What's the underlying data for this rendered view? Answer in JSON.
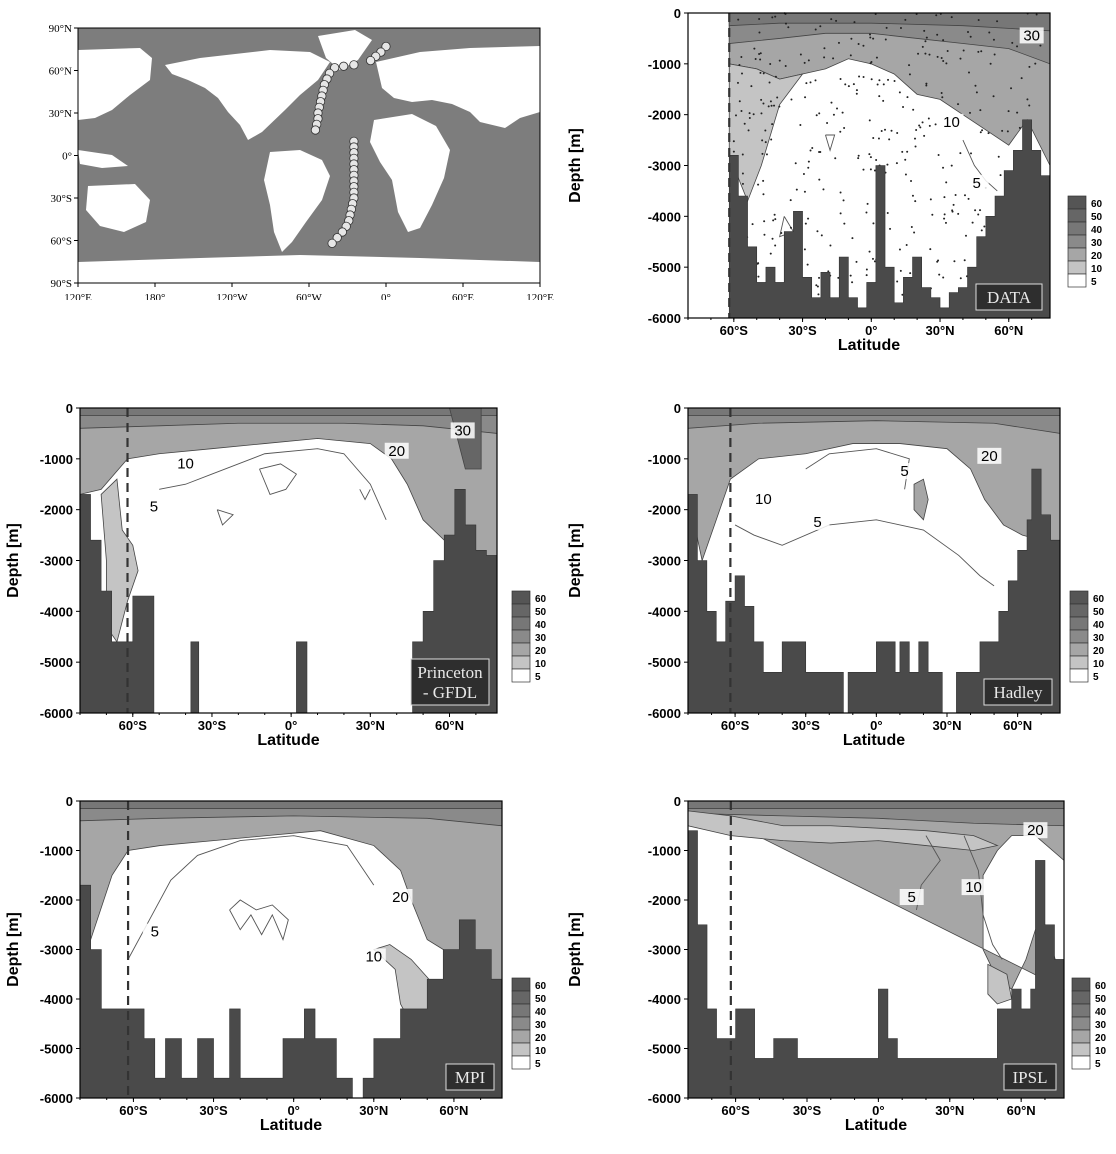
{
  "map": {
    "lat_ticks": [
      "90°N",
      "60°N",
      "30°N",
      "0°",
      "30°S",
      "60°S",
      "90°S"
    ],
    "lon_ticks": [
      "120°E",
      "180°",
      "120°W",
      "60°W",
      "0°",
      "60°E",
      "120°E"
    ],
    "track": [
      {
        "lon": 0,
        "lat": 77
      },
      {
        "lon": -4,
        "lat": 73
      },
      {
        "lon": -8,
        "lat": 70
      },
      {
        "lon": -12,
        "lat": 67
      },
      {
        "lon": -25,
        "lat": 64
      },
      {
        "lon": -33,
        "lat": 63
      },
      {
        "lon": -40,
        "lat": 62
      },
      {
        "lon": -44,
        "lat": 58
      },
      {
        "lon": -46,
        "lat": 54
      },
      {
        "lon": -48,
        "lat": 50
      },
      {
        "lon": -49,
        "lat": 46
      },
      {
        "lon": -50,
        "lat": 42
      },
      {
        "lon": -51,
        "lat": 38
      },
      {
        "lon": -52,
        "lat": 34
      },
      {
        "lon": -53,
        "lat": 30
      },
      {
        "lon": -53,
        "lat": 26
      },
      {
        "lon": -54,
        "lat": 22
      },
      {
        "lon": -55,
        "lat": 18
      },
      {
        "lon": -25,
        "lat": 10
      },
      {
        "lon": -25,
        "lat": 6
      },
      {
        "lon": -25,
        "lat": 2
      },
      {
        "lon": -25,
        "lat": -2
      },
      {
        "lon": -25,
        "lat": -6
      },
      {
        "lon": -25,
        "lat": -10
      },
      {
        "lon": -25,
        "lat": -14
      },
      {
        "lon": -25,
        "lat": -18
      },
      {
        "lon": -25,
        "lat": -22
      },
      {
        "lon": -25,
        "lat": -26
      },
      {
        "lon": -25,
        "lat": -30
      },
      {
        "lon": -26,
        "lat": -34
      },
      {
        "lon": -27,
        "lat": -38
      },
      {
        "lon": -28,
        "lat": -42
      },
      {
        "lon": -29,
        "lat": -46
      },
      {
        "lon": -31,
        "lat": -50
      },
      {
        "lon": -34,
        "lat": -54
      },
      {
        "lon": -38,
        "lat": -58
      },
      {
        "lon": -42,
        "lat": -62
      }
    ]
  },
  "legend": {
    "values": [
      "60",
      "50",
      "40",
      "30",
      "20",
      "10",
      "5"
    ]
  },
  "chart_data": [
    {
      "type": "contour",
      "name": "DATA",
      "x_ticks": [
        "60°S",
        "30°S",
        "0°",
        "30°N",
        "60°N"
      ],
      "xlabel": "Latitude",
      "ylabel": "Depth [m]",
      "y_ticks": [
        "0",
        "-1000",
        "-2000",
        "-3000",
        "-4000",
        "-5000",
        "-6000"
      ],
      "ylim": [
        -6000,
        0
      ],
      "xlim": [
        -80,
        78
      ],
      "contour_labels": [
        "30",
        "10",
        "5"
      ],
      "levels": [
        5,
        10,
        20,
        30,
        40,
        50,
        60
      ],
      "dashed_line_lat": -62,
      "bathymetry": [
        {
          "lat": -62,
          "depth": -2800
        },
        {
          "lat": -58,
          "depth": -3600
        },
        {
          "lat": -54,
          "depth": -4600
        },
        {
          "lat": -50,
          "depth": -5300
        },
        {
          "lat": -46,
          "depth": -5000
        },
        {
          "lat": -42,
          "depth": -5300
        },
        {
          "lat": -38,
          "depth": -4300
        },
        {
          "lat": -34,
          "depth": -3900
        },
        {
          "lat": -30,
          "depth": -5200
        },
        {
          "lat": -26,
          "depth": -5600
        },
        {
          "lat": -22,
          "depth": -5100
        },
        {
          "lat": -18,
          "depth": -5600
        },
        {
          "lat": -14,
          "depth": -4800
        },
        {
          "lat": -10,
          "depth": -5600
        },
        {
          "lat": -6,
          "depth": -5800
        },
        {
          "lat": -2,
          "depth": -5300
        },
        {
          "lat": 2,
          "depth": -3000
        },
        {
          "lat": 6,
          "depth": -5000
        },
        {
          "lat": 10,
          "depth": -5700
        },
        {
          "lat": 14,
          "depth": -5200
        },
        {
          "lat": 18,
          "depth": -4800
        },
        {
          "lat": 22,
          "depth": -5400
        },
        {
          "lat": 26,
          "depth": -5600
        },
        {
          "lat": 30,
          "depth": -5800
        },
        {
          "lat": 34,
          "depth": -5500
        },
        {
          "lat": 38,
          "depth": -5400
        },
        {
          "lat": 42,
          "depth": -5000
        },
        {
          "lat": 46,
          "depth": -4400
        },
        {
          "lat": 50,
          "depth": -4000
        },
        {
          "lat": 54,
          "depth": -3600
        },
        {
          "lat": 58,
          "depth": -3100
        },
        {
          "lat": 62,
          "depth": -2700
        },
        {
          "lat": 66,
          "depth": -2100
        },
        {
          "lat": 70,
          "depth": -2700
        },
        {
          "lat": 74,
          "depth": -3200
        },
        {
          "lat": 78,
          "depth": -3300
        }
      ]
    },
    {
      "type": "contour",
      "name": "Princeton - GFDL",
      "name_lines": [
        "Princeton",
        "- GFDL"
      ],
      "x_ticks": [
        "60°S",
        "30°S",
        "0°",
        "30°N",
        "60°N"
      ],
      "xlabel": "Latitude",
      "ylabel": "Depth [m]",
      "y_ticks": [
        "0",
        "-1000",
        "-2000",
        "-3000",
        "-4000",
        "-5000",
        "-6000"
      ],
      "ylim": [
        -6000,
        0
      ],
      "xlim": [
        -80,
        78
      ],
      "contour_labels": [
        "30",
        "20",
        "10",
        "5"
      ],
      "levels": [
        5,
        10,
        20,
        30,
        40,
        50,
        60
      ],
      "dashed_line_lat": -62,
      "bathymetry": [
        {
          "lat": -80,
          "depth": -1700
        },
        {
          "lat": -76,
          "depth": -2600
        },
        {
          "lat": -72,
          "depth": -3600
        },
        {
          "lat": -68,
          "depth": -4600
        },
        {
          "lat": -64,
          "depth": -4600
        },
        {
          "lat": -60,
          "depth": -3700
        },
        {
          "lat": -56,
          "depth": -3700
        },
        {
          "lat": -52,
          "depth": -6000
        },
        {
          "lat": -38,
          "depth": -4600
        },
        {
          "lat": -35,
          "depth": -6000
        },
        {
          "lat": 2,
          "depth": -4600
        },
        {
          "lat": 6,
          "depth": -6000
        },
        {
          "lat": 46,
          "depth": -4600
        },
        {
          "lat": 50,
          "depth": -4000
        },
        {
          "lat": 54,
          "depth": -3000
        },
        {
          "lat": 58,
          "depth": -2500
        },
        {
          "lat": 62,
          "depth": -1600
        },
        {
          "lat": 66,
          "depth": -2300
        },
        {
          "lat": 70,
          "depth": -2800
        },
        {
          "lat": 74,
          "depth": -2900
        }
      ]
    },
    {
      "type": "contour",
      "name": "Hadley",
      "x_ticks": [
        "60°S",
        "30°S",
        "0°",
        "30°N",
        "60°N"
      ],
      "xlabel": "Latitude",
      "ylabel": "Depth [m]",
      "y_ticks": [
        "0",
        "-1000",
        "-2000",
        "-3000",
        "-4000",
        "-5000",
        "-6000"
      ],
      "ylim": [
        -6000,
        0
      ],
      "xlim": [
        -80,
        78
      ],
      "contour_labels": [
        "20",
        "10",
        "5",
        "5"
      ],
      "levels": [
        5,
        10,
        20,
        30,
        40,
        50,
        60
      ],
      "dashed_line_lat": -62,
      "bathymetry": [
        {
          "lat": -80,
          "depth": -1700
        },
        {
          "lat": -76,
          "depth": -3000
        },
        {
          "lat": -72,
          "depth": -4000
        },
        {
          "lat": -68,
          "depth": -4600
        },
        {
          "lat": -64,
          "depth": -3800
        },
        {
          "lat": -60,
          "depth": -3300
        },
        {
          "lat": -56,
          "depth": -3900
        },
        {
          "lat": -52,
          "depth": -4600
        },
        {
          "lat": -48,
          "depth": -5200
        },
        {
          "lat": -40,
          "depth": -4600
        },
        {
          "lat": -30,
          "depth": -5200
        },
        {
          "lat": -14,
          "depth": -6000
        },
        {
          "lat": -12,
          "depth": -5200
        },
        {
          "lat": 0,
          "depth": -4600
        },
        {
          "lat": 8,
          "depth": -5200
        },
        {
          "lat": 10,
          "depth": -4600
        },
        {
          "lat": 14,
          "depth": -5200
        },
        {
          "lat": 18,
          "depth": -4600
        },
        {
          "lat": 22,
          "depth": -5200
        },
        {
          "lat": 28,
          "depth": -6000
        },
        {
          "lat": 34,
          "depth": -5200
        },
        {
          "lat": 44,
          "depth": -4600
        },
        {
          "lat": 52,
          "depth": -4000
        },
        {
          "lat": 56,
          "depth": -3400
        },
        {
          "lat": 60,
          "depth": -2800
        },
        {
          "lat": 64,
          "depth": -2200
        },
        {
          "lat": 66,
          "depth": -1200
        },
        {
          "lat": 70,
          "depth": -2100
        },
        {
          "lat": 74,
          "depth": -2600
        },
        {
          "lat": 78,
          "depth": -2700
        }
      ]
    },
    {
      "type": "contour",
      "name": "MPI",
      "x_ticks": [
        "60°S",
        "30°S",
        "0°",
        "30°N",
        "60°N"
      ],
      "xlabel": "Latitude",
      "ylabel": "Depth [m]",
      "y_ticks": [
        "0",
        "-1000",
        "-2000",
        "-3000",
        "-4000",
        "-5000",
        "-6000"
      ],
      "ylim": [
        -6000,
        0
      ],
      "xlim": [
        -80,
        78
      ],
      "contour_labels": [
        "20",
        "10",
        "5"
      ],
      "levels": [
        5,
        10,
        20,
        30,
        40,
        50,
        60
      ],
      "dashed_line_lat": -62,
      "bathymetry": [
        {
          "lat": -80,
          "depth": -1700
        },
        {
          "lat": -76,
          "depth": -3000
        },
        {
          "lat": -72,
          "depth": -4200
        },
        {
          "lat": -66,
          "depth": -4200
        },
        {
          "lat": -60,
          "depth": -4200
        },
        {
          "lat": -56,
          "depth": -4800
        },
        {
          "lat": -52,
          "depth": -5600
        },
        {
          "lat": -48,
          "depth": -4800
        },
        {
          "lat": -42,
          "depth": -5600
        },
        {
          "lat": -36,
          "depth": -4800
        },
        {
          "lat": -30,
          "depth": -5600
        },
        {
          "lat": -24,
          "depth": -4200
        },
        {
          "lat": -20,
          "depth": -5600
        },
        {
          "lat": -4,
          "depth": -4800
        },
        {
          "lat": 4,
          "depth": -4200
        },
        {
          "lat": 8,
          "depth": -4800
        },
        {
          "lat": 16,
          "depth": -5600
        },
        {
          "lat": 22,
          "depth": -6000
        },
        {
          "lat": 26,
          "depth": -5600
        },
        {
          "lat": 30,
          "depth": -4800
        },
        {
          "lat": 36,
          "depth": -4800
        },
        {
          "lat": 40,
          "depth": -4200
        },
        {
          "lat": 50,
          "depth": -3600
        },
        {
          "lat": 56,
          "depth": -3000
        },
        {
          "lat": 62,
          "depth": -2400
        },
        {
          "lat": 68,
          "depth": -3000
        },
        {
          "lat": 74,
          "depth": -3600
        },
        {
          "lat": 78,
          "depth": -3800
        }
      ]
    },
    {
      "type": "contour",
      "name": "IPSL",
      "x_ticks": [
        "60°S",
        "30°S",
        "0°",
        "30°N",
        "60°N"
      ],
      "xlabel": "Latitude",
      "ylabel": "Depth [m]",
      "y_ticks": [
        "0",
        "-1000",
        "-2000",
        "-3000",
        "-4000",
        "-5000",
        "-6000"
      ],
      "ylim": [
        -6000,
        0
      ],
      "xlim": [
        -80,
        78
      ],
      "contour_labels": [
        "20",
        "10",
        "5"
      ],
      "levels": [
        5,
        10,
        20,
        30,
        40,
        50,
        60
      ],
      "dashed_line_lat": -62,
      "bathymetry": [
        {
          "lat": -80,
          "depth": -600
        },
        {
          "lat": -76,
          "depth": -2500
        },
        {
          "lat": -72,
          "depth": -4200
        },
        {
          "lat": -68,
          "depth": -4800
        },
        {
          "lat": -64,
          "depth": -4800
        },
        {
          "lat": -60,
          "depth": -4200
        },
        {
          "lat": -56,
          "depth": -4200
        },
        {
          "lat": -52,
          "depth": -5200
        },
        {
          "lat": -48,
          "depth": -5200
        },
        {
          "lat": -44,
          "depth": -4800
        },
        {
          "lat": -38,
          "depth": -4800
        },
        {
          "lat": -34,
          "depth": -5200
        },
        {
          "lat": -10,
          "depth": -5200
        },
        {
          "lat": 0,
          "depth": -3800
        },
        {
          "lat": 4,
          "depth": -4800
        },
        {
          "lat": 8,
          "depth": -5200
        },
        {
          "lat": 14,
          "depth": -5200
        },
        {
          "lat": 46,
          "depth": -5200
        },
        {
          "lat": 50,
          "depth": -4200
        },
        {
          "lat": 56,
          "depth": -3800
        },
        {
          "lat": 60,
          "depth": -4200
        },
        {
          "lat": 64,
          "depth": -3800
        },
        {
          "lat": 66,
          "depth": -1200
        },
        {
          "lat": 70,
          "depth": -2500
        },
        {
          "lat": 74,
          "depth": -3200
        },
        {
          "lat": 78,
          "depth": -3800
        }
      ]
    }
  ]
}
